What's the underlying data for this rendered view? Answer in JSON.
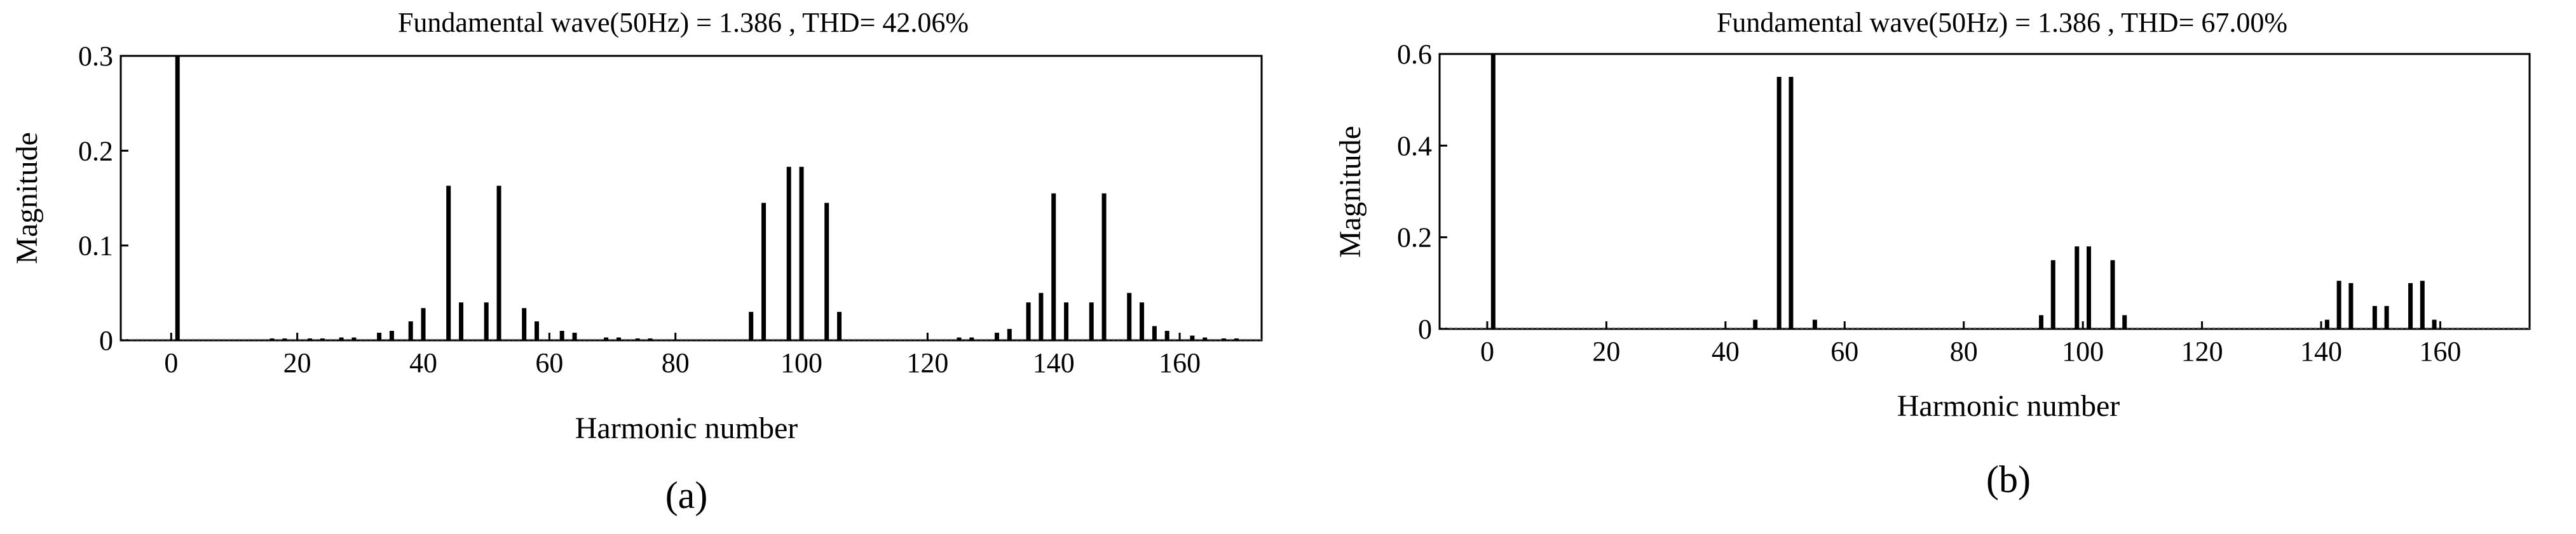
{
  "chart_data": [
    {
      "type": "bar",
      "panel_label": "(a)",
      "title": "Fundamental wave(50Hz) = 1.386 , THD= 42.06%",
      "xlabel": "Harmonic number",
      "ylabel": "Magnitude",
      "xlim": [
        -8,
        173
      ],
      "ylim": [
        0,
        0.3
      ],
      "xticks": [
        0,
        20,
        40,
        60,
        80,
        100,
        120,
        140,
        160
      ],
      "yticks": [
        0,
        0.1,
        0.2,
        0.3
      ],
      "ytick_labels": [
        "0",
        "0.1",
        "0.2",
        "0.3"
      ],
      "grid": false,
      "x": [
        1,
        16,
        18,
        22,
        24,
        27,
        29,
        33,
        35,
        38,
        40,
        44,
        46,
        50,
        52,
        56,
        58,
        62,
        64,
        69,
        71,
        74,
        76,
        92,
        94,
        98,
        100,
        104,
        106,
        125,
        127,
        131,
        133,
        136,
        138,
        140,
        142,
        146,
        148,
        152,
        154,
        156,
        158,
        162,
        164,
        167,
        169
      ],
      "values": [
        0.3,
        0.002,
        0.002,
        0.002,
        0.002,
        0.003,
        0.003,
        0.008,
        0.01,
        0.02,
        0.034,
        0.163,
        0.04,
        0.04,
        0.163,
        0.034,
        0.02,
        0.01,
        0.008,
        0.003,
        0.003,
        0.002,
        0.002,
        0.03,
        0.145,
        0.183,
        0.183,
        0.145,
        0.03,
        0.003,
        0.003,
        0.008,
        0.012,
        0.04,
        0.05,
        0.155,
        0.04,
        0.04,
        0.155,
        0.05,
        0.04,
        0.015,
        0.01,
        0.005,
        0.003,
        0.002,
        0.002
      ]
    },
    {
      "type": "bar",
      "panel_label": "(b)",
      "title": "Fundamental wave(50Hz) = 1.386 , THD= 67.00%",
      "xlabel": "Harmonic number",
      "ylabel": "Magnitude",
      "xlim": [
        -8,
        175
      ],
      "ylim": [
        0,
        0.6
      ],
      "xticks": [
        0,
        20,
        40,
        60,
        80,
        100,
        120,
        140,
        160
      ],
      "yticks": [
        0,
        0.2,
        0.4,
        0.6
      ],
      "ytick_labels": [
        "0",
        "0.2",
        "0.4",
        "0.6"
      ],
      "grid": false,
      "x": [
        1,
        45,
        49,
        51,
        55,
        93,
        95,
        99,
        101,
        105,
        107,
        141,
        143,
        145,
        149,
        151,
        155,
        157,
        159
      ],
      "values": [
        0.6,
        0.02,
        0.55,
        0.55,
        0.02,
        0.03,
        0.15,
        0.18,
        0.18,
        0.15,
        0.03,
        0.02,
        0.105,
        0.1,
        0.05,
        0.05,
        0.1,
        0.105,
        0.02
      ]
    }
  ]
}
